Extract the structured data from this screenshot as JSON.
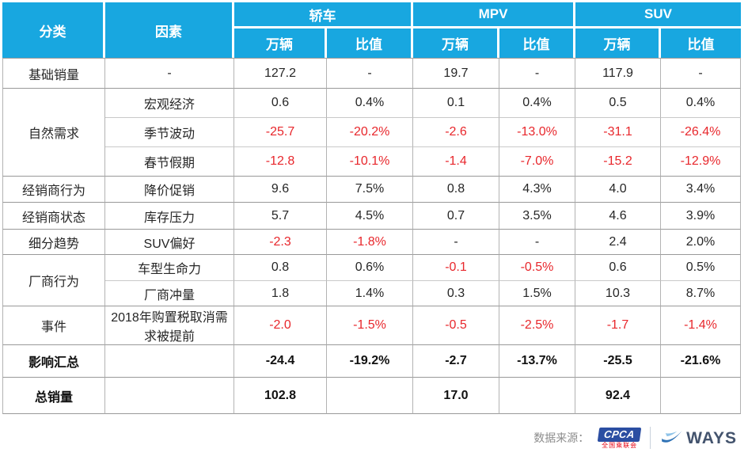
{
  "table": {
    "col_headers": {
      "category": "分类",
      "factor": "因素",
      "groups": [
        {
          "label": "轿车",
          "sub": [
            "万辆",
            "比值"
          ]
        },
        {
          "label": "MPV",
          "sub": [
            "万辆",
            "比值"
          ]
        },
        {
          "label": "SUV",
          "sub": [
            "万辆",
            "比值"
          ]
        }
      ]
    },
    "rows": [
      {
        "category": "基础销量",
        "cat_rowspan": 1,
        "factor": "-",
        "values": [
          "127.2",
          "-",
          "19.7",
          "-",
          "117.9",
          "-"
        ],
        "group_start": true
      },
      {
        "category": "自然需求",
        "cat_rowspan": 3,
        "factor": "宏观经济",
        "values": [
          "0.6",
          "0.4%",
          "0.1",
          "0.4%",
          "0.5",
          "0.4%"
        ],
        "group_start": true
      },
      {
        "factor": "季节波动",
        "values": [
          "-25.7",
          "-20.2%",
          "-2.6",
          "-13.0%",
          "-31.1",
          "-26.4%"
        ]
      },
      {
        "factor": "春节假期",
        "values": [
          "-12.8",
          "-10.1%",
          "-1.4",
          "-7.0%",
          "-15.2",
          "-12.9%"
        ]
      },
      {
        "category": "经销商行为",
        "cat_rowspan": 1,
        "factor": "降价促销",
        "values": [
          "9.6",
          "7.5%",
          "0.8",
          "4.3%",
          "4.0",
          "3.4%"
        ],
        "group_start": true
      },
      {
        "category": "经销商状态",
        "cat_rowspan": 1,
        "factor": "库存压力",
        "values": [
          "5.7",
          "4.5%",
          "0.7",
          "3.5%",
          "4.6",
          "3.9%"
        ],
        "group_start": true
      },
      {
        "category": "细分趋势",
        "cat_rowspan": 1,
        "factor": "SUV偏好",
        "values": [
          "-2.3",
          "-1.8%",
          "-",
          "-",
          "2.4",
          "2.0%"
        ],
        "group_start": true
      },
      {
        "category": "厂商行为",
        "cat_rowspan": 2,
        "factor": "车型生命力",
        "values": [
          "0.8",
          "0.6%",
          "-0.1",
          "-0.5%",
          "0.6",
          "0.5%"
        ],
        "group_start": true
      },
      {
        "factor": "厂商冲量",
        "values": [
          "1.8",
          "1.4%",
          "0.3",
          "1.5%",
          "10.3",
          "8.7%"
        ]
      },
      {
        "category": "事件",
        "cat_rowspan": 1,
        "factor": "2018年购置税取消需求被提前",
        "values": [
          "-2.0",
          "-1.5%",
          "-0.5",
          "-2.5%",
          "-1.7",
          "-1.4%"
        ],
        "group_start": true
      },
      {
        "category": "影响汇总",
        "cat_rowspan": 1,
        "factor": "",
        "values": [
          "-24.4",
          "-19.2%",
          "-2.7",
          "-13.7%",
          "-25.5",
          "-21.6%"
        ],
        "group_start": true,
        "bold": true
      },
      {
        "category": "总销量",
        "cat_rowspan": 1,
        "factor": "",
        "values": [
          "102.8",
          "",
          "17.0",
          "",
          "92.4",
          ""
        ],
        "group_start": true,
        "bold": true
      }
    ]
  },
  "footer": {
    "source_label": "数据来源：",
    "cpca": {
      "name": "CPCA",
      "subtitle": "全国乘联会"
    },
    "ways": {
      "name": "WAYS"
    }
  },
  "colors": {
    "header_blue": "#18a7e0",
    "negative_red": "#e8272c",
    "border_dark": "#999999",
    "border_light": "#c9c9c9",
    "cpca_blue": "#2b4ea2",
    "cpca_red": "#e60012",
    "ways_dark": "#43536d"
  }
}
